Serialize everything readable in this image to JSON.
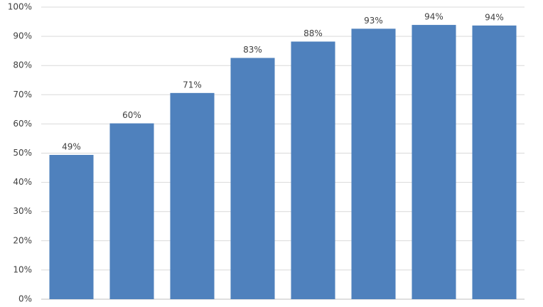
{
  "chart_data": {
    "type": "bar",
    "categories": [
      null,
      null,
      null,
      null,
      null,
      null,
      null,
      null
    ],
    "values": [
      49.4,
      60.2,
      70.6,
      82.6,
      88.2,
      92.6,
      93.9,
      93.7
    ],
    "value_labels": [
      "49%",
      "60%",
      "71%",
      "83%",
      "88%",
      "93%",
      "94%",
      "94%"
    ],
    "color": "#4f81bd",
    "ylim": [
      0,
      100
    ],
    "yticks": [
      {
        "value": 0,
        "label": "0%"
      },
      {
        "value": 10,
        "label": "10%"
      },
      {
        "value": 20,
        "label": "20%"
      },
      {
        "value": 30,
        "label": "30%"
      },
      {
        "value": 40,
        "label": "40%"
      },
      {
        "value": 50,
        "label": "50%"
      },
      {
        "value": 60,
        "label": "60%"
      },
      {
        "value": 70,
        "label": "70%"
      },
      {
        "value": 80,
        "label": "80%"
      },
      {
        "value": 90,
        "label": "90%"
      },
      {
        "value": 100,
        "label": "100%"
      }
    ],
    "grid": true
  }
}
